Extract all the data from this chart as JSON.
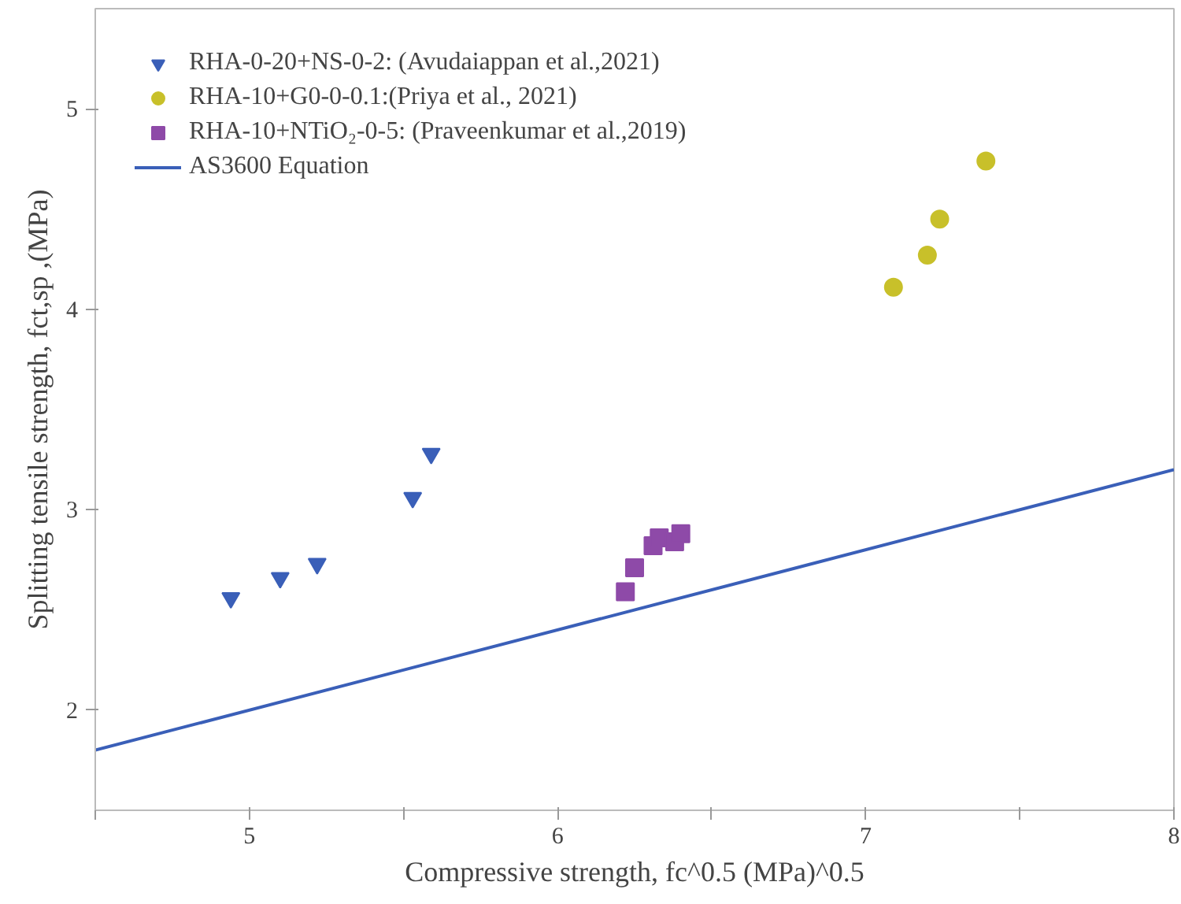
{
  "chart_data": {
    "type": "scatter",
    "xlabel": "Compressive strength, fc^0.5 (MPa)^0.5",
    "ylabel": "Splitting tensile strength, fct,sp ,(MPa)",
    "xlim": [
      4.5,
      8
    ],
    "ylim": [
      1.5,
      5.5
    ],
    "xticks": [
      {
        "value": 4.5,
        "label": null
      },
      5,
      {
        "value": 5.5,
        "label": null
      },
      6,
      {
        "value": 6.5,
        "label": null
      },
      7,
      {
        "value": 7.5,
        "label": null
      },
      8
    ],
    "yticks": [
      2,
      3,
      4,
      5
    ],
    "grid": false,
    "legend": "top left",
    "series": [
      {
        "name": "RHA-0-20+NS-0-2: (Avudaiappan et al.,2021)",
        "marker": "triangle",
        "color": "#3a5fb8",
        "x": [
          4.94,
          5.1,
          5.22,
          5.53,
          5.59
        ],
        "values": [
          2.56,
          2.66,
          2.73,
          3.06,
          3.28
        ]
      },
      {
        "name": "RHA-10+G0-0-0.1:(Priya et al., 2021)",
        "marker": "circle",
        "color": "#c8c02a",
        "x": [
          7.09,
          7.2,
          7.24,
          7.39
        ],
        "values": [
          4.11,
          4.27,
          4.45,
          4.74
        ]
      },
      {
        "name": "RHA-10+NTiO₂-0-5: (Praveenkumar et al.,2019)",
        "marker": "square",
        "color": "#8e4aa8",
        "x": [
          6.22,
          6.25,
          6.31,
          6.33,
          6.38,
          6.4
        ],
        "values": [
          2.59,
          2.71,
          2.82,
          2.86,
          2.84,
          2.88
        ]
      },
      {
        "name": "AS3600 Equation",
        "type": "line",
        "color": "#3a5fb8",
        "x": [
          4.5,
          8
        ],
        "values": [
          1.8,
          3.2
        ]
      }
    ]
  }
}
